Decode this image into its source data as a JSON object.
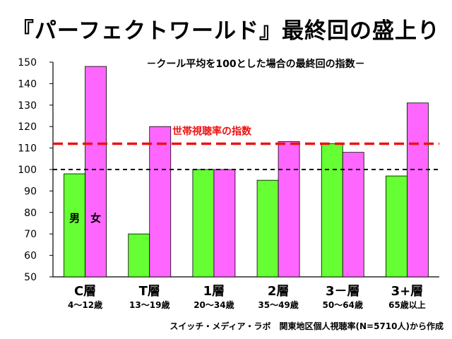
{
  "title": "『パーフェクトワールド』最終回の盛上り",
  "chart_data": {
    "type": "bar",
    "subtitle": "－クール平均を100とした場合の最終回の指数－",
    "categories": [
      {
        "label": "C層",
        "sublabel": "4～12歳"
      },
      {
        "label": "T層",
        "sublabel": "13～19歳"
      },
      {
        "label": "1層",
        "sublabel": "20～34歳"
      },
      {
        "label": "2層",
        "sublabel": "35～49歳"
      },
      {
        "label": "3－層",
        "sublabel": "50～64歳"
      },
      {
        "label": "3+層",
        "sublabel": "65歳以上"
      }
    ],
    "series": [
      {
        "name": "男",
        "color": "#66ff33",
        "values": [
          98,
          70,
          100,
          95,
          112,
          97
        ]
      },
      {
        "name": "女",
        "color": "#ff66ff",
        "values": [
          148,
          120,
          100,
          113,
          108,
          131
        ]
      }
    ],
    "ylim": [
      50,
      150
    ],
    "yticks": [
      50,
      60,
      70,
      80,
      90,
      100,
      110,
      120,
      130,
      140,
      150
    ],
    "reference_lines": [
      {
        "value": 100,
        "color": "#000000",
        "style": "dashed",
        "label": ""
      },
      {
        "value": 112,
        "color": "#ee1111",
        "style": "dashed",
        "label": "世帯視聴率の指数"
      }
    ],
    "grid": false,
    "source": "スイッチ・メディア・ラボ　関東地区個人視聴率(N=5710人)から作成"
  }
}
